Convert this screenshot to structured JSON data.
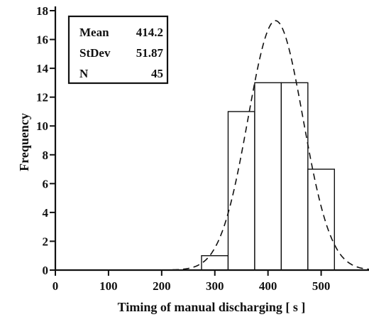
{
  "chart_data": {
    "type": "histogram",
    "xlabel": "Timing of manual discharging [ s ]",
    "ylabel": "Frequency",
    "xlim": [
      0,
      590
    ],
    "ylim": [
      0,
      18
    ],
    "xticks": [
      0,
      100,
      200,
      300,
      400,
      500
    ],
    "yticks": [
      0,
      2,
      4,
      6,
      8,
      10,
      12,
      14,
      16,
      18
    ],
    "bins": [
      {
        "from": 275,
        "to": 325,
        "count": 1
      },
      {
        "from": 325,
        "to": 375,
        "count": 11
      },
      {
        "from": 375,
        "to": 425,
        "count": 13
      },
      {
        "from": 425,
        "to": 475,
        "count": 13
      },
      {
        "from": 475,
        "to": 525,
        "count": 7
      }
    ],
    "fit_curve": {
      "kind": "normal",
      "mean": 414.2,
      "stdev": 51.87,
      "n": 45,
      "bin_width": 50,
      "style": "dashed"
    },
    "stats_box": [
      {
        "label": "Mean",
        "value": "414.2"
      },
      {
        "label": "StDev",
        "value": "51.87"
      },
      {
        "label": "N",
        "value": "45"
      }
    ],
    "grid": false,
    "stats_box_placement": "top-left"
  }
}
